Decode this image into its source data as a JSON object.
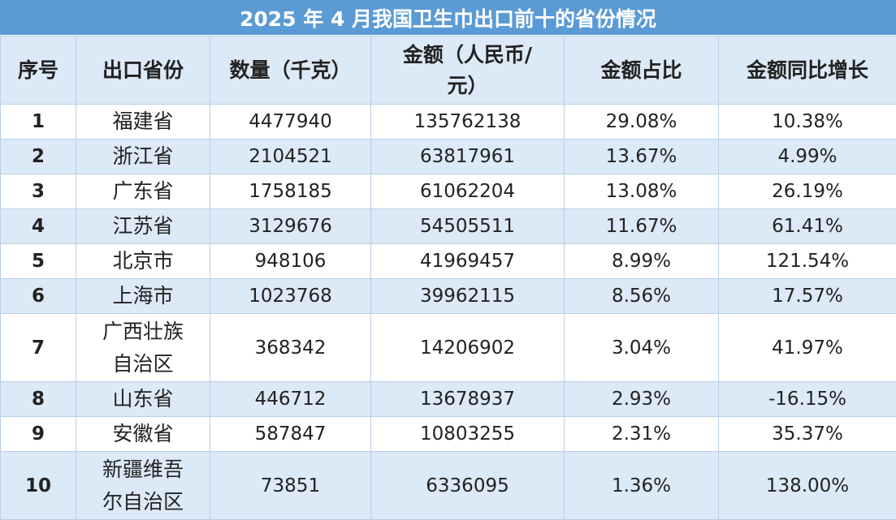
{
  "title": "2025 年 4 月我国卫生巾出口前十的省份情况",
  "columns": [
    "序号",
    "出口省份",
    "数量（千克）",
    "金额（人民币/元）",
    "金额占比",
    "金额同比增长"
  ],
  "rows": [
    {
      "idx": "1",
      "province": "福建省",
      "quantity": "4477940",
      "amount": "135762138",
      "share": "29.08%",
      "growth": "10.38%"
    },
    {
      "idx": "2",
      "province": "浙江省",
      "quantity": "2104521",
      "amount": "63817961",
      "share": "13.67%",
      "growth": "4.99%"
    },
    {
      "idx": "3",
      "province": "广东省",
      "quantity": "1758185",
      "amount": "61062204",
      "share": "13.08%",
      "growth": "26.19%"
    },
    {
      "idx": "4",
      "province": "江苏省",
      "quantity": "3129676",
      "amount": "54505511",
      "share": "11.67%",
      "growth": "61.41%"
    },
    {
      "idx": "5",
      "province": "北京市",
      "quantity": "948106",
      "amount": "41969457",
      "share": "8.99%",
      "growth": "121.54%"
    },
    {
      "idx": "6",
      "province": "上海市",
      "quantity": "1023768",
      "amount": "39962115",
      "share": "8.56%",
      "growth": "17.57%"
    },
    {
      "idx": "7",
      "province": "广西壮族自治区",
      "quantity": "368342",
      "amount": "14206902",
      "share": "3.04%",
      "growth": "41.97%"
    },
    {
      "idx": "8",
      "province": "山东省",
      "quantity": "446712",
      "amount": "13678937",
      "share": "2.93%",
      "growth": "-16.15%"
    },
    {
      "idx": "9",
      "province": "安徽省",
      "quantity": "587847",
      "amount": "10803255",
      "share": "2.31%",
      "growth": "35.37%"
    },
    {
      "idx": "10",
      "province": "新疆维吾尔自治区",
      "quantity": "73851",
      "amount": "6336095",
      "share": "1.36%",
      "growth": "138.00%"
    }
  ],
  "colors": {
    "header_bg": "#5b9bd5",
    "stripe_bg": "#dce9f6",
    "border": "#b7cfe6"
  }
}
